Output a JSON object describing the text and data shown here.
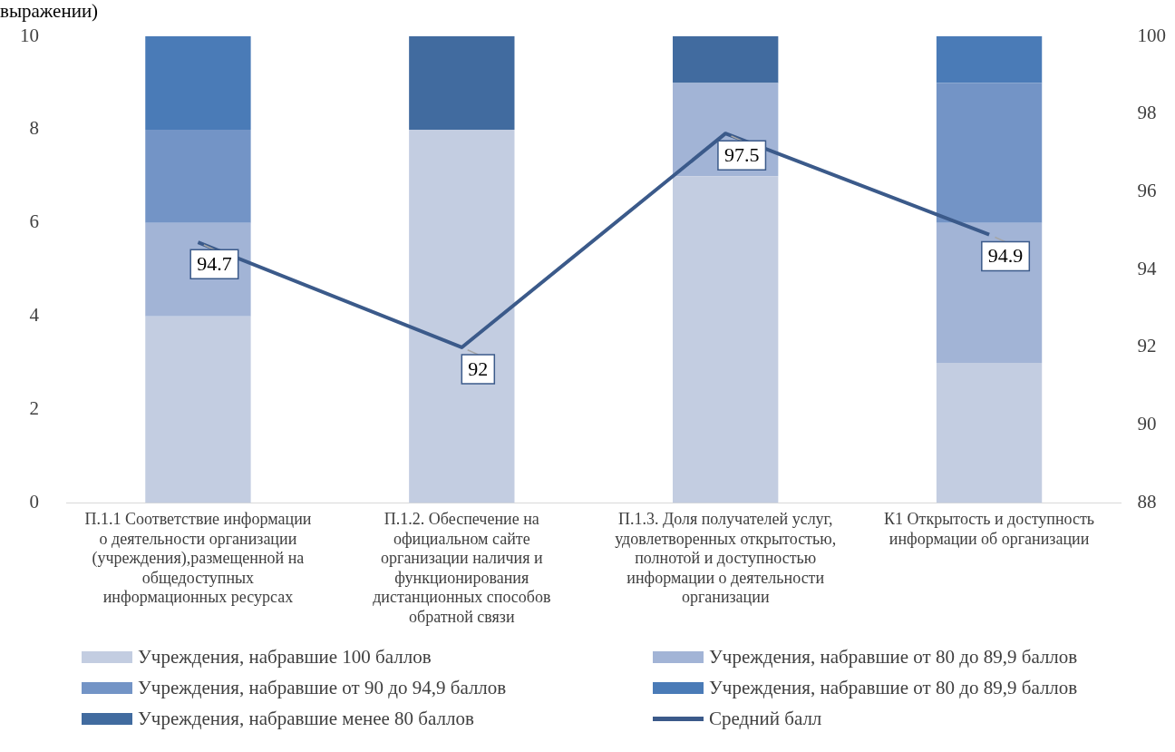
{
  "chart_data": {
    "type": "bar",
    "title": "выражении)",
    "stacked": true,
    "categories": [
      "П.1.1 Соответствие информации о деятельности организации (учреждения),размещенной на общедоступных информационных ресурсах",
      "П.1.2. Обеспечение на официальном сайте организации наличия и функционирования дистанционных способов обратной связи",
      "П.1.3. Доля получателей услуг, удовлетворенных открытостью, полнотой и доступностью информации о деятельности организации",
      "К1 Открытость и доступность информации об организации"
    ],
    "series": [
      {
        "name": "Учреждения, набравшие 100 баллов",
        "color": "#c3cde1",
        "values": [
          4,
          8,
          7,
          3
        ]
      },
      {
        "name": "Учреждения, набравшие от 80 до 89,9 баллов",
        "color": "#a2b4d6",
        "values": [
          2,
          0,
          2,
          3
        ]
      },
      {
        "name": "Учреждения, набравшие от 90 до 94,9 баллов",
        "color": "#7394c6",
        "values": [
          2,
          0,
          0,
          3
        ]
      },
      {
        "name": "Учреждения, набравшие от 80 до 89,9 баллов",
        "color": "#4a7bb7",
        "values": [
          2,
          0,
          0,
          1
        ]
      },
      {
        "name": "Учреждения, набравшие менее 80 баллов",
        "color": "#416b9f",
        "values": [
          0,
          2,
          1,
          0
        ]
      },
      {
        "name": "Средний балл",
        "type": "line",
        "axis": "y2",
        "color": "#3b5a8a",
        "values": [
          94.7,
          92,
          97.5,
          94.9
        ],
        "data_labels": true
      }
    ],
    "ylim": [
      0,
      10
    ],
    "yticks": [
      0,
      2,
      4,
      6,
      8,
      10
    ],
    "y2lim": [
      88,
      100
    ],
    "y2ticks": [
      88,
      90,
      92,
      94,
      96,
      98,
      100
    ],
    "grid": false,
    "legend": "bottom",
    "marker": "none"
  }
}
